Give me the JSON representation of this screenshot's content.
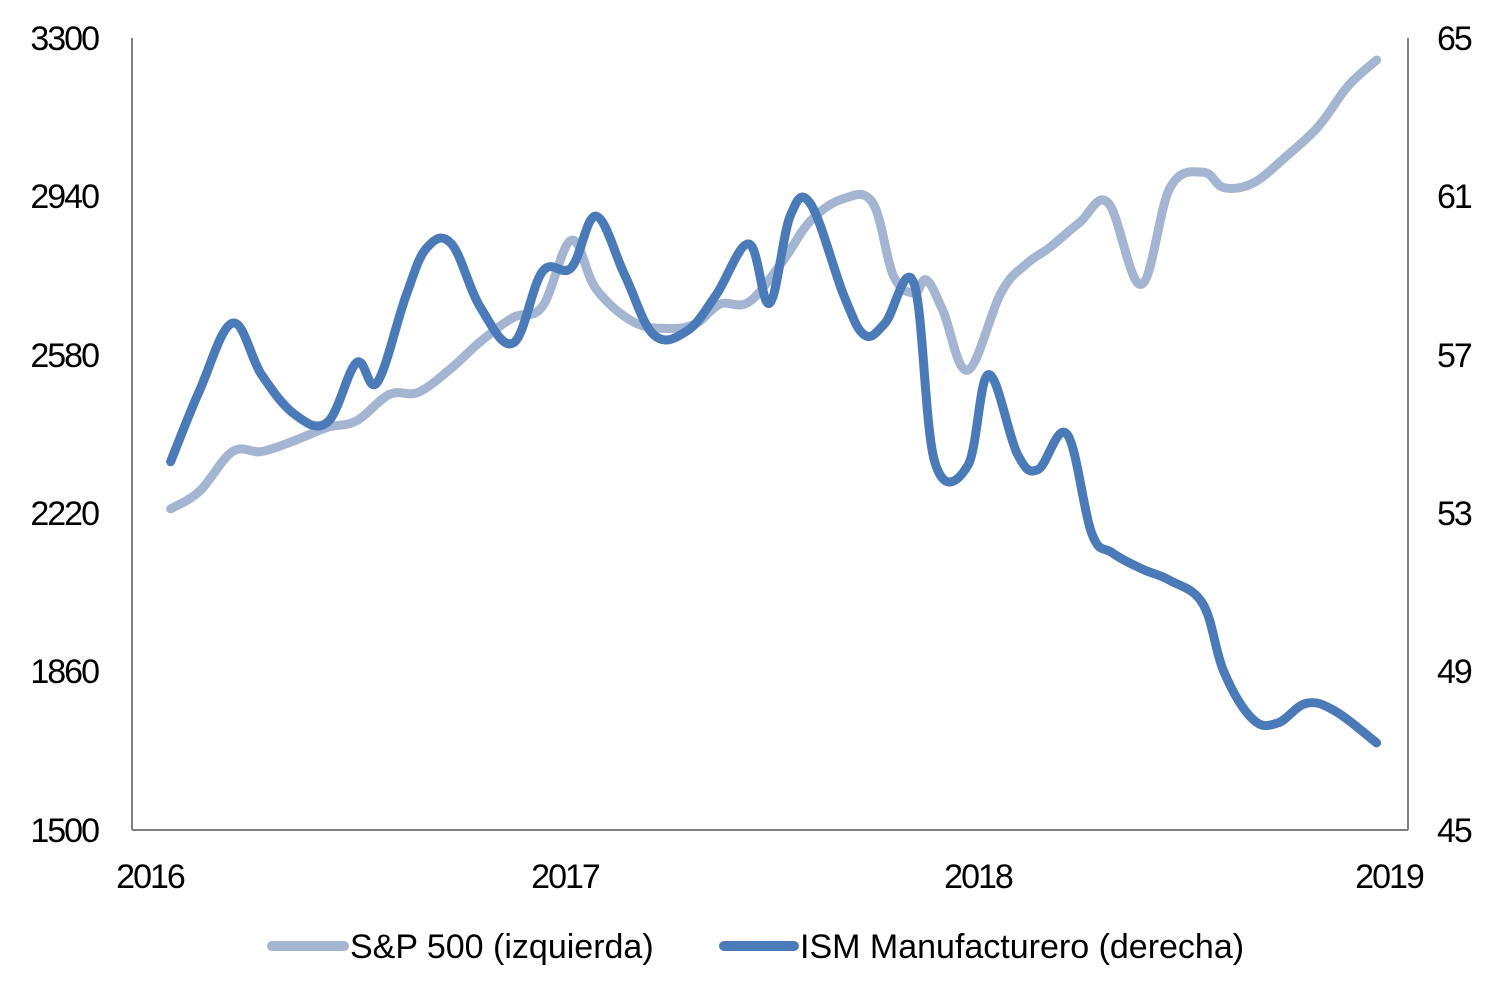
{
  "chart_data": {
    "type": "line",
    "title": "",
    "x_ticks": [
      "2016",
      "2017",
      "2018",
      "2019"
    ],
    "y_left": {
      "ticks": [
        "3300",
        "2940",
        "2580",
        "2220",
        "1860",
        "1500"
      ],
      "lim": [
        1500,
        3300
      ]
    },
    "y_right": {
      "ticks": [
        "65",
        "61",
        "57",
        "53",
        "49",
        "45"
      ],
      "lim": [
        45,
        65
      ]
    },
    "x_lim": [
      2016,
      2019
    ],
    "series": [
      {
        "name": "S&P 500 (izquierda)",
        "axis": "left",
        "color": "#a4b5d2",
        "x": [
          2016.05,
          2016.12,
          2016.2,
          2016.27,
          2016.35,
          2016.43,
          2016.5,
          2016.58,
          2016.65,
          2016.73,
          2016.8,
          2016.88,
          2016.95,
          2017.02,
          2017.08,
          2017.17,
          2017.25,
          2017.32,
          2017.38,
          2017.45,
          2017.53,
          2017.6,
          2017.68,
          2017.75,
          2017.8,
          2017.85,
          2017.88,
          2017.92,
          2017.98,
          2018.06,
          2018.12,
          2018.18,
          2018.25,
          2018.32,
          2018.4,
          2018.47,
          2018.55,
          2018.6,
          2018.67,
          2018.75,
          2018.83,
          2018.9,
          2018.97
        ],
        "values": [
          2230,
          2270,
          2360,
          2360,
          2385,
          2415,
          2430,
          2490,
          2495,
          2550,
          2610,
          2665,
          2690,
          2840,
          2730,
          2655,
          2640,
          2650,
          2695,
          2700,
          2790,
          2885,
          2935,
          2925,
          2760,
          2720,
          2750,
          2680,
          2545,
          2720,
          2785,
          2825,
          2880,
          2925,
          2740,
          2960,
          2995,
          2960,
          2970,
          3030,
          3100,
          3190,
          3250
        ]
      },
      {
        "name": "ISM Manufacturero (derecha)",
        "axis": "right",
        "color": "#4a7ab8",
        "x": [
          2016.05,
          2016.12,
          2016.2,
          2016.27,
          2016.35,
          2016.43,
          2016.5,
          2016.55,
          2016.62,
          2016.67,
          2016.73,
          2016.8,
          2016.88,
          2016.95,
          2017.02,
          2017.08,
          2017.15,
          2017.22,
          2017.3,
          2017.37,
          2017.45,
          2017.5,
          2017.55,
          2017.6,
          2017.68,
          2017.73,
          2017.78,
          2017.85,
          2017.9,
          2017.98,
          2018.03,
          2018.1,
          2018.15,
          2018.22,
          2018.28,
          2018.33,
          2018.4,
          2018.47,
          2018.55,
          2018.6,
          2018.67,
          2018.73,
          2018.8,
          2018.87,
          2018.97
        ],
        "values": [
          54.3,
          56.1,
          57.8,
          56.5,
          55.5,
          55.3,
          56.8,
          56.3,
          58.5,
          59.7,
          59.8,
          58.2,
          57.3,
          59.1,
          59.2,
          60.5,
          59.0,
          57.5,
          57.6,
          58.5,
          59.8,
          58.3,
          60.5,
          60.8,
          58.5,
          57.5,
          57.8,
          58.8,
          54.3,
          54.2,
          56.5,
          54.5,
          54.1,
          55.0,
          52.5,
          52.0,
          51.6,
          51.3,
          50.7,
          49.0,
          47.8,
          47.7,
          48.2,
          48.0,
          47.2
        ]
      }
    ]
  }
}
